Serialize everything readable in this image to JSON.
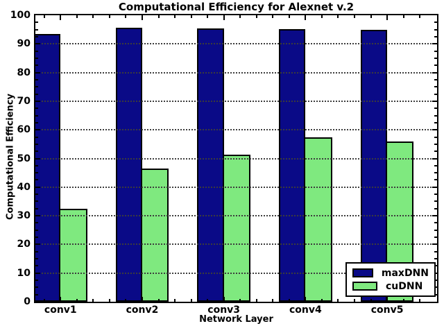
{
  "chart_data": {
    "type": "bar",
    "title": "Computational Efficiency for Alexnet v.2",
    "xlabel": "Network Layer",
    "ylabel": "Computational Efficiency",
    "categories": [
      "conv1",
      "conv2",
      "conv3",
      "conv4",
      "conv5"
    ],
    "series": [
      {
        "name": "maxDNN",
        "color": "#0a0a87",
        "values": [
          93.5,
          95.7,
          95.4,
          95.1,
          94.8
        ]
      },
      {
        "name": "cuDNN",
        "color": "#7fe97f",
        "values": [
          32.5,
          46.5,
          51.4,
          57.5,
          55.9
        ]
      }
    ],
    "ylim": [
      0,
      100
    ],
    "yticks": [
      0,
      10,
      20,
      30,
      40,
      50,
      60,
      70,
      80,
      90,
      100
    ],
    "grid": {
      "axis": "y",
      "style": "dotted",
      "color": "#3c3c3c",
      "drawn_over_bars": true
    },
    "legend": {
      "position": "lower-right",
      "entries": [
        "maxDNN",
        "cuDNN"
      ]
    },
    "bar_edge_color": "#000000",
    "background": "#ffffff"
  }
}
